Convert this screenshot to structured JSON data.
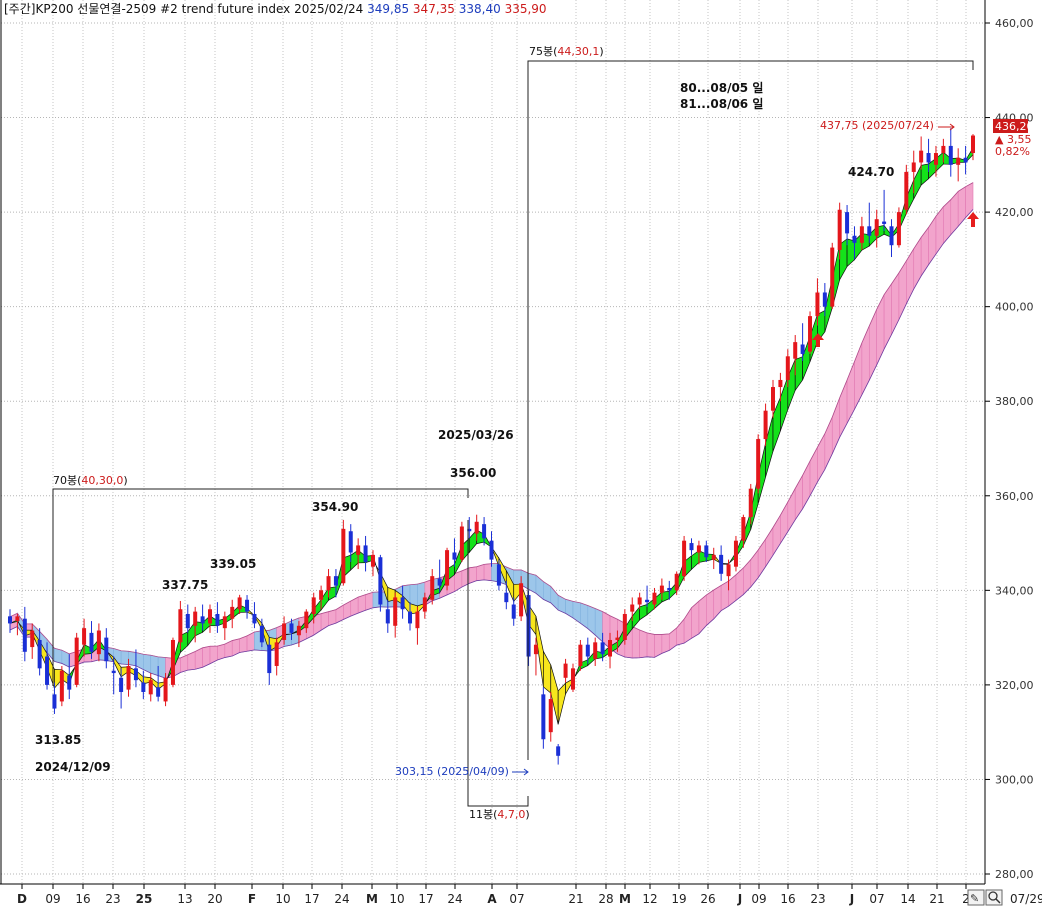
{
  "header": {
    "prefix": "[주간]",
    "title": "KP200 선물연결-2509 #2 trend future index",
    "date": "2025/02/24",
    "open": "349,85",
    "high": "347,35",
    "low": "338,40",
    "close": "335,90",
    "colors": {
      "open": "#1d3dbd",
      "high": "#cc1b1b",
      "low": "#1d3dbd",
      "close": "#cc1b1b"
    }
  },
  "price_box": {
    "last": "436,20",
    "change": "▲ 3,55",
    "percent": "0,82%"
  },
  "annotations": {
    "low_label": "313.85",
    "low_date": "2024/12/09",
    "a1": "337.75",
    "a2": "339.05",
    "a3": "354.90",
    "peak_date": "2025/03/26",
    "peak_value": "356.00",
    "box70": "70봉(",
    "box70_params": "40,30,0",
    "box70_close": ")",
    "box75": "75봉(",
    "box75_params": "44,30,1",
    "box75_close": ")",
    "box11": "11봉(",
    "box11_params": "4,7,0",
    "box11_close": ")",
    "low2_label": "303,15 (2025/04/09)",
    "high_label": "437,75 (2025/07/24)",
    "label_42470": "424.70",
    "note1": "80...08/05 일",
    "note2": "81...08/06 일"
  },
  "footer": {
    "date": "07/29",
    "button_edit": "✎",
    "button_zoom": "🔍"
  },
  "chart_data": {
    "type": "candlestick",
    "title": "KP200 선물연결-2509 #2 trend future index",
    "yaxis": {
      "ylim": [
        280,
        460
      ],
      "ticks": [
        "280,00",
        "300,00",
        "320,00",
        "340,00",
        "360,00",
        "380,00",
        "400,00",
        "420,00",
        "440,00",
        "460,00"
      ]
    },
    "xaxis_labels": [
      "D",
      "09",
      "16",
      "23",
      "25",
      "13",
      "20",
      "F",
      "10",
      "17",
      "24",
      "M",
      "10",
      "17",
      "24",
      "A",
      "07",
      "21",
      "28",
      "M",
      "12",
      "19",
      "26",
      "J",
      "09",
      "16",
      "23",
      "J",
      "07",
      "14",
      "21",
      "2"
    ],
    "grid": true,
    "ohlc": [
      {
        "o": 334.5,
        "h": 336.0,
        "l": 331.0,
        "c": 333.0
      },
      {
        "o": 333.5,
        "h": 335.0,
        "l": 330.5,
        "c": 334.5
      },
      {
        "o": 334.0,
        "h": 336.5,
        "l": 325.0,
        "c": 327.0
      },
      {
        "o": 328.0,
        "h": 333.0,
        "l": 325.5,
        "c": 331.5
      },
      {
        "o": 329.5,
        "h": 332.0,
        "l": 322.0,
        "c": 323.5
      },
      {
        "o": 326.0,
        "h": 329.0,
        "l": 319.0,
        "c": 320.0
      },
      {
        "o": 318.0,
        "h": 320.5,
        "l": 313.85,
        "c": 315.0
      },
      {
        "o": 316.5,
        "h": 324.0,
        "l": 315.5,
        "c": 323.0
      },
      {
        "o": 322.0,
        "h": 326.5,
        "l": 317.0,
        "c": 319.0
      },
      {
        "o": 320.0,
        "h": 331.0,
        "l": 319.5,
        "c": 330.0
      },
      {
        "o": 328.5,
        "h": 334.0,
        "l": 326.0,
        "c": 332.0
      },
      {
        "o": 331.0,
        "h": 333.5,
        "l": 325.5,
        "c": 327.0
      },
      {
        "o": 326.5,
        "h": 333.0,
        "l": 325.0,
        "c": 331.5
      },
      {
        "o": 330.0,
        "h": 332.0,
        "l": 323.5,
        "c": 325.0
      },
      {
        "o": 323.0,
        "h": 326.0,
        "l": 318.0,
        "c": 322.5
      },
      {
        "o": 321.5,
        "h": 323.5,
        "l": 315.0,
        "c": 318.5
      },
      {
        "o": 319.0,
        "h": 325.5,
        "l": 317.5,
        "c": 324.0
      },
      {
        "o": 323.5,
        "h": 327.5,
        "l": 319.5,
        "c": 321.0
      },
      {
        "o": 320.5,
        "h": 323.0,
        "l": 317.0,
        "c": 318.5
      },
      {
        "o": 318.0,
        "h": 322.5,
        "l": 316.5,
        "c": 321.0
      },
      {
        "o": 319.5,
        "h": 324.0,
        "l": 316.5,
        "c": 317.5
      },
      {
        "o": 316.5,
        "h": 322.5,
        "l": 315.5,
        "c": 321.5
      },
      {
        "o": 320.0,
        "h": 330.0,
        "l": 319.5,
        "c": 329.5
      },
      {
        "o": 329.0,
        "h": 337.75,
        "l": 327.5,
        "c": 336.0
      },
      {
        "o": 335.0,
        "h": 337.0,
        "l": 331.0,
        "c": 332.0
      },
      {
        "o": 332.5,
        "h": 336.5,
        "l": 329.0,
        "c": 335.5
      },
      {
        "o": 334.5,
        "h": 337.0,
        "l": 331.5,
        "c": 333.0
      },
      {
        "o": 333.0,
        "h": 337.0,
        "l": 331.0,
        "c": 336.0
      },
      {
        "o": 335.0,
        "h": 337.5,
        "l": 331.0,
        "c": 332.5
      },
      {
        "o": 332.0,
        "h": 335.5,
        "l": 329.5,
        "c": 334.5
      },
      {
        "o": 334.0,
        "h": 338.0,
        "l": 332.0,
        "c": 336.5
      },
      {
        "o": 336.0,
        "h": 339.05,
        "l": 335.0,
        "c": 338.5
      },
      {
        "o": 338.0,
        "h": 339.0,
        "l": 334.0,
        "c": 335.5
      },
      {
        "o": 335.0,
        "h": 337.5,
        "l": 332.0,
        "c": 333.0
      },
      {
        "o": 332.5,
        "h": 334.0,
        "l": 328.0,
        "c": 329.0
      },
      {
        "o": 328.5,
        "h": 330.0,
        "l": 320.0,
        "c": 322.5
      },
      {
        "o": 324.0,
        "h": 330.0,
        "l": 322.0,
        "c": 329.0
      },
      {
        "o": 329.5,
        "h": 334.5,
        "l": 328.5,
        "c": 333.0
      },
      {
        "o": 333.0,
        "h": 334.0,
        "l": 329.5,
        "c": 331.0
      },
      {
        "o": 330.5,
        "h": 333.5,
        "l": 328.0,
        "c": 332.5
      },
      {
        "o": 332.0,
        "h": 336.0,
        "l": 331.0,
        "c": 335.5
      },
      {
        "o": 335.0,
        "h": 339.5,
        "l": 333.0,
        "c": 338.5
      },
      {
        "o": 338.0,
        "h": 341.0,
        "l": 336.0,
        "c": 340.0
      },
      {
        "o": 340.0,
        "h": 344.5,
        "l": 338.5,
        "c": 343.0
      },
      {
        "o": 343.0,
        "h": 344.5,
        "l": 338.5,
        "c": 341.0
      },
      {
        "o": 341.5,
        "h": 354.9,
        "l": 341.0,
        "c": 353.0
      },
      {
        "o": 352.5,
        "h": 354.0,
        "l": 346.0,
        "c": 348.0
      },
      {
        "o": 347.5,
        "h": 351.0,
        "l": 344.5,
        "c": 349.5
      },
      {
        "o": 349.5,
        "h": 351.5,
        "l": 344.0,
        "c": 346.0
      },
      {
        "o": 345.0,
        "h": 348.5,
        "l": 343.0,
        "c": 347.5
      },
      {
        "o": 347.0,
        "h": 347.5,
        "l": 335.5,
        "c": 337.0
      },
      {
        "o": 336.0,
        "h": 338.0,
        "l": 331.0,
        "c": 333.0
      },
      {
        "o": 332.5,
        "h": 339.5,
        "l": 330.0,
        "c": 338.5
      },
      {
        "o": 338.5,
        "h": 341.0,
        "l": 334.0,
        "c": 336.0
      },
      {
        "o": 335.5,
        "h": 337.5,
        "l": 331.5,
        "c": 333.0
      },
      {
        "o": 332.0,
        "h": 336.5,
        "l": 328.5,
        "c": 335.5
      },
      {
        "o": 335.5,
        "h": 339.5,
        "l": 334.0,
        "c": 338.5
      },
      {
        "o": 338.0,
        "h": 344.5,
        "l": 337.0,
        "c": 343.0
      },
      {
        "o": 342.5,
        "h": 346.5,
        "l": 339.5,
        "c": 341.0
      },
      {
        "o": 341.0,
        "h": 349.0,
        "l": 340.0,
        "c": 348.5
      },
      {
        "o": 348.0,
        "h": 351.0,
        "l": 345.0,
        "c": 346.5
      },
      {
        "o": 346.5,
        "h": 354.5,
        "l": 346.0,
        "c": 353.5
      },
      {
        "o": 353.0,
        "h": 355.5,
        "l": 351.0,
        "c": 352.5
      },
      {
        "o": 352.0,
        "h": 356.0,
        "l": 350.5,
        "c": 354.5
      },
      {
        "o": 354.0,
        "h": 355.5,
        "l": 349.5,
        "c": 351.0
      },
      {
        "o": 350.5,
        "h": 352.5,
        "l": 345.0,
        "c": 346.5
      },
      {
        "o": 345.5,
        "h": 346.5,
        "l": 340.0,
        "c": 341.0
      },
      {
        "o": 339.5,
        "h": 342.0,
        "l": 336.0,
        "c": 337.5
      },
      {
        "o": 337.0,
        "h": 338.5,
        "l": 332.5,
        "c": 334.0
      },
      {
        "o": 334.5,
        "h": 343.0,
        "l": 333.5,
        "c": 341.5
      },
      {
        "o": 339.0,
        "h": 340.0,
        "l": 324.0,
        "c": 326.0
      },
      {
        "o": 326.5,
        "h": 330.0,
        "l": 322.0,
        "c": 328.5
      },
      {
        "o": 318.0,
        "h": 319.5,
        "l": 306.5,
        "c": 308.5
      },
      {
        "o": 310.0,
        "h": 318.5,
        "l": 308.0,
        "c": 317.0
      },
      {
        "o": 307.0,
        "h": 307.5,
        "l": 303.15,
        "c": 305.0
      },
      {
        "o": 321.5,
        "h": 325.5,
        "l": 320.5,
        "c": 324.5
      },
      {
        "o": 319.0,
        "h": 324.5,
        "l": 318.5,
        "c": 323.5
      },
      {
        "o": 324.0,
        "h": 329.5,
        "l": 323.0,
        "c": 328.5
      },
      {
        "o": 328.5,
        "h": 330.0,
        "l": 324.5,
        "c": 326.0
      },
      {
        "o": 325.5,
        "h": 330.0,
        "l": 324.0,
        "c": 329.0
      },
      {
        "o": 329.0,
        "h": 331.0,
        "l": 325.0,
        "c": 326.5
      },
      {
        "o": 326.0,
        "h": 331.0,
        "l": 323.5,
        "c": 329.5
      },
      {
        "o": 329.5,
        "h": 331.5,
        "l": 327.0,
        "c": 330.0
      },
      {
        "o": 329.5,
        "h": 336.0,
        "l": 328.5,
        "c": 335.0
      },
      {
        "o": 335.5,
        "h": 338.5,
        "l": 333.5,
        "c": 337.0
      },
      {
        "o": 337.0,
        "h": 339.5,
        "l": 336.0,
        "c": 338.5
      },
      {
        "o": 338.0,
        "h": 341.0,
        "l": 336.5,
        "c": 337.5
      },
      {
        "o": 337.0,
        "h": 340.5,
        "l": 336.0,
        "c": 339.5
      },
      {
        "o": 339.5,
        "h": 342.5,
        "l": 338.0,
        "c": 341.0
      },
      {
        "o": 340.5,
        "h": 342.0,
        "l": 338.0,
        "c": 340.0
      },
      {
        "o": 340.0,
        "h": 344.0,
        "l": 339.0,
        "c": 343.5
      },
      {
        "o": 343.0,
        "h": 351.5,
        "l": 342.0,
        "c": 350.5
      },
      {
        "o": 350.0,
        "h": 351.0,
        "l": 347.5,
        "c": 348.5
      },
      {
        "o": 348.0,
        "h": 350.5,
        "l": 345.5,
        "c": 349.5
      },
      {
        "o": 349.5,
        "h": 350.5,
        "l": 346.0,
        "c": 347.0
      },
      {
        "o": 346.5,
        "h": 349.0,
        "l": 344.5,
        "c": 347.5
      },
      {
        "o": 347.5,
        "h": 349.5,
        "l": 342.0,
        "c": 343.5
      },
      {
        "o": 343.0,
        "h": 346.5,
        "l": 340.0,
        "c": 345.5
      },
      {
        "o": 345.0,
        "h": 351.5,
        "l": 344.0,
        "c": 350.5
      },
      {
        "o": 350.5,
        "h": 356.0,
        "l": 349.0,
        "c": 355.5
      },
      {
        "o": 355.5,
        "h": 362.5,
        "l": 354.0,
        "c": 361.5
      },
      {
        "o": 361.5,
        "h": 373.0,
        "l": 360.5,
        "c": 372.0
      },
      {
        "o": 372.0,
        "h": 379.5,
        "l": 370.5,
        "c": 378.0
      },
      {
        "o": 378.0,
        "h": 384.5,
        "l": 376.5,
        "c": 383.0
      },
      {
        "o": 383.0,
        "h": 386.0,
        "l": 380.0,
        "c": 384.5
      },
      {
        "o": 384.5,
        "h": 391.0,
        "l": 383.0,
        "c": 389.5
      },
      {
        "o": 389.0,
        "h": 394.0,
        "l": 385.5,
        "c": 392.5
      },
      {
        "o": 392.0,
        "h": 396.5,
        "l": 388.5,
        "c": 390.0
      },
      {
        "o": 390.5,
        "h": 399.0,
        "l": 390.0,
        "c": 398.0
      },
      {
        "o": 398.0,
        "h": 406.0,
        "l": 396.0,
        "c": 403.0
      },
      {
        "o": 403.0,
        "h": 405.0,
        "l": 398.0,
        "c": 400.0
      },
      {
        "o": 400.0,
        "h": 413.5,
        "l": 399.5,
        "c": 412.5
      },
      {
        "o": 412.0,
        "h": 422.0,
        "l": 410.0,
        "c": 420.5
      },
      {
        "o": 420.0,
        "h": 421.5,
        "l": 413.0,
        "c": 415.5
      },
      {
        "o": 415.0,
        "h": 417.0,
        "l": 410.0,
        "c": 413.5
      },
      {
        "o": 413.5,
        "h": 419.0,
        "l": 412.0,
        "c": 417.0
      },
      {
        "o": 417.0,
        "h": 422.0,
        "l": 413.5,
        "c": 415.0
      },
      {
        "o": 415.0,
        "h": 420.5,
        "l": 412.5,
        "c": 418.5
      },
      {
        "o": 418.0,
        "h": 424.7,
        "l": 416.0,
        "c": 417.5
      },
      {
        "o": 417.0,
        "h": 418.5,
        "l": 410.5,
        "c": 413.0
      },
      {
        "o": 413.0,
        "h": 421.0,
        "l": 412.5,
        "c": 420.0
      },
      {
        "o": 420.5,
        "h": 430.0,
        "l": 419.5,
        "c": 428.5
      },
      {
        "o": 428.5,
        "h": 433.0,
        "l": 424.0,
        "c": 430.5
      },
      {
        "o": 430.5,
        "h": 436.0,
        "l": 429.0,
        "c": 433.0
      },
      {
        "o": 432.5,
        "h": 435.5,
        "l": 428.5,
        "c": 430.5
      },
      {
        "o": 430.0,
        "h": 434.0,
        "l": 427.5,
        "c": 432.5
      },
      {
        "o": 432.5,
        "h": 435.5,
        "l": 430.5,
        "c": 434.0
      },
      {
        "o": 434.0,
        "h": 437.75,
        "l": 427.5,
        "c": 430.0
      },
      {
        "o": 430.0,
        "h": 433.5,
        "l": 426.5,
        "c": 431.5
      },
      {
        "o": 431.5,
        "h": 434.0,
        "l": 428.0,
        "c": 430.5
      },
      {
        "o": 432.5,
        "h": 436.5,
        "l": 431.0,
        "c": 436.2
      }
    ]
  }
}
